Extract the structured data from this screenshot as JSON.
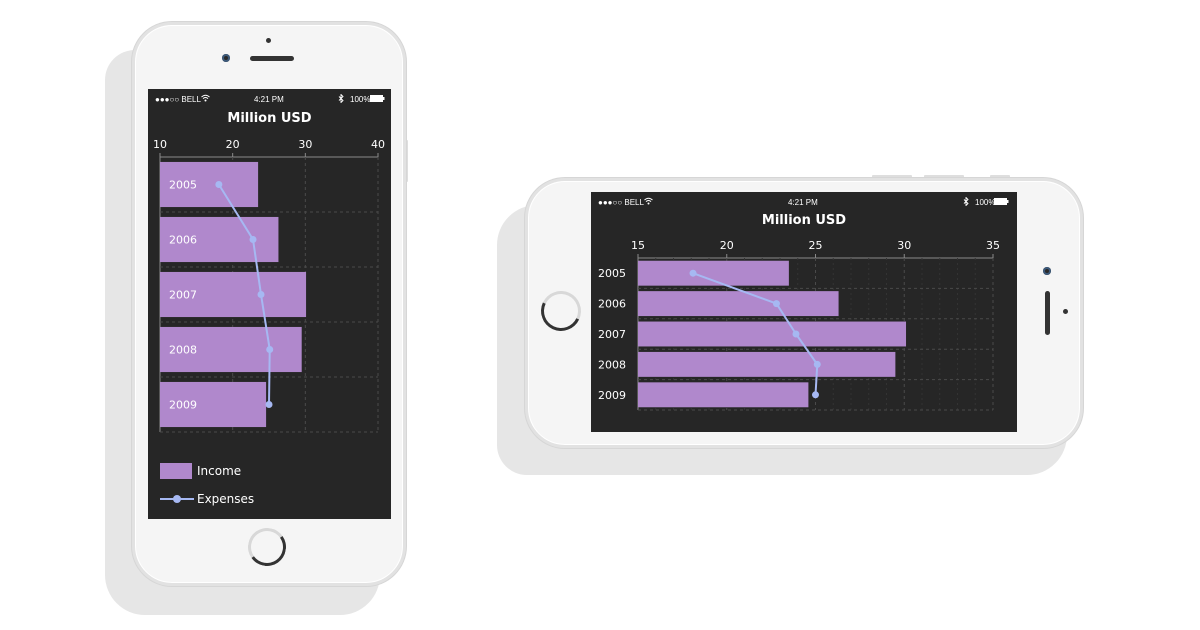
{
  "status_bar": {
    "carrier": "●●●○○ BELL",
    "time": "4:21 PM",
    "battery": "100%",
    "icons": [
      "wifi-icon",
      "bluetooth-icon",
      "battery-icon"
    ]
  },
  "colors": {
    "income_bar": "#b088cc",
    "expenses_line": "#a6b8f2",
    "screen_bg": "#262626",
    "grid": "#4a4a4a",
    "text": "#ffffff"
  },
  "legend": {
    "income_label": "Income",
    "expenses_label": "Expenses"
  },
  "chart_data": [
    {
      "type": "bar",
      "orientation": "horizontal",
      "title": "Million USD",
      "categories": [
        "2005",
        "2006",
        "2007",
        "2008",
        "2009"
      ],
      "series": [
        {
          "name": "Income",
          "type": "bar",
          "values": [
            23.5,
            26.3,
            30.1,
            29.5,
            24.6
          ]
        },
        {
          "name": "Expenses",
          "type": "line",
          "values": [
            18.1,
            22.8,
            23.9,
            25.1,
            25.0
          ]
        }
      ],
      "xlim": [
        10,
        40
      ],
      "xticks": [
        "10",
        "20",
        "30",
        "40"
      ],
      "grid": true,
      "legend": "bottom"
    },
    {
      "type": "bar",
      "orientation": "horizontal",
      "title": "Million USD",
      "categories": [
        "2005",
        "2006",
        "2007",
        "2008",
        "2009"
      ],
      "series": [
        {
          "name": "Income",
          "type": "bar",
          "values": [
            23.5,
            26.3,
            30.1,
            29.5,
            24.6
          ]
        },
        {
          "name": "Expenses",
          "type": "line",
          "values": [
            18.1,
            22.8,
            23.9,
            25.1,
            25.0
          ]
        }
      ],
      "xlim": [
        15,
        35
      ],
      "xticks": [
        "15",
        "20",
        "25",
        "30",
        "35"
      ],
      "grid": true,
      "legend": "none"
    }
  ]
}
